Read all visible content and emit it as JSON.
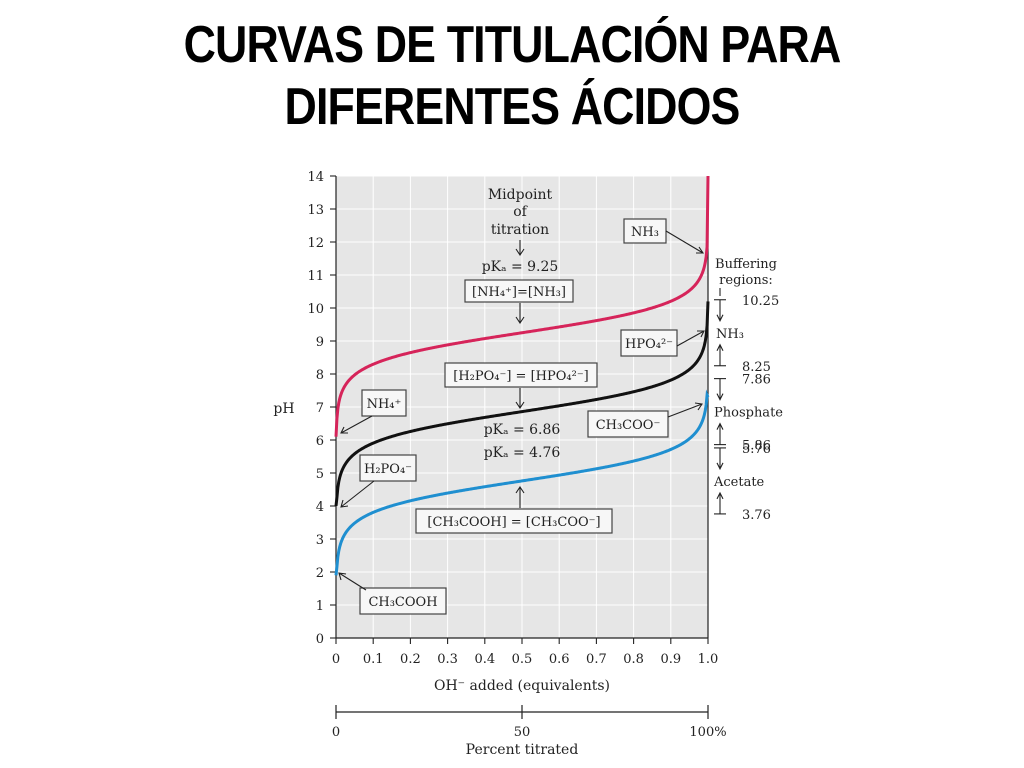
{
  "title_line1": "CURVAS DE TITULACIÓN PARA",
  "title_line2": "DIFERENTES ÁCIDOS",
  "chart_data": {
    "type": "line",
    "title": "CURVAS DE TITULACIÓN PARA DIFERENTES ÁCIDOS",
    "xlabel": "OH⁻ added (equivalents)",
    "ylabel": "pH",
    "x2label": "Percent titrated",
    "xlim": [
      0,
      1.0
    ],
    "ylim": [
      0,
      14
    ],
    "x_ticks": [
      "0",
      "0.1",
      "0.2",
      "0.3",
      "0.4",
      "0.5",
      "0.6",
      "0.7",
      "0.8",
      "0.9",
      "1.0"
    ],
    "y_ticks": [
      "0",
      "1",
      "2",
      "3",
      "4",
      "5",
      "6",
      "7",
      "8",
      "9",
      "10",
      "11",
      "12",
      "13",
      "14"
    ],
    "x2_ticks": [
      "0",
      "50",
      "100%"
    ],
    "series": [
      {
        "name": "NH₄⁺",
        "pKa": 9.25,
        "start_ph": 6.1,
        "color": "#d6245a"
      },
      {
        "name": "H₂PO₄⁻",
        "pKa": 6.86,
        "start_ph": 4.0,
        "color": "#111111"
      },
      {
        "name": "CH₃COOH",
        "pKa": 4.76,
        "start_ph": 1.9,
        "color": "#1f8fd0"
      }
    ],
    "annotations": {
      "midpoint": [
        "Midpoint",
        "of",
        "titration"
      ],
      "pka_nh": "pKₐ = 9.25",
      "eq_nh": "[NH₄⁺]=[NH₃]",
      "eq_po": "[H₂PO₄⁻] = [HPO₄²⁻]",
      "pka_po": "pKₐ = 6.86",
      "pka_ac": "pKₐ = 4.76",
      "eq_ac": "[CH₃COOH] = [CH₃COO⁻]",
      "label_nh3": "NH₃",
      "label_nh4": "NH₄⁺",
      "label_hpo4": "HPO₄²⁻",
      "label_h2po4": "H₂PO₄⁻",
      "label_ch3coo": "CH₃COO⁻",
      "label_ch3cooh": "CH₃COOH"
    },
    "buffering": {
      "title": [
        "Buffering",
        "regions:"
      ],
      "regions": [
        {
          "name": "NH₃",
          "high": "10.25",
          "low": "8.25"
        },
        {
          "name": "Phosphate",
          "high": "7.86",
          "low": "5.86"
        },
        {
          "name": "Acetate",
          "high": "5.76",
          "low": "3.76"
        }
      ]
    },
    "grid": true
  }
}
